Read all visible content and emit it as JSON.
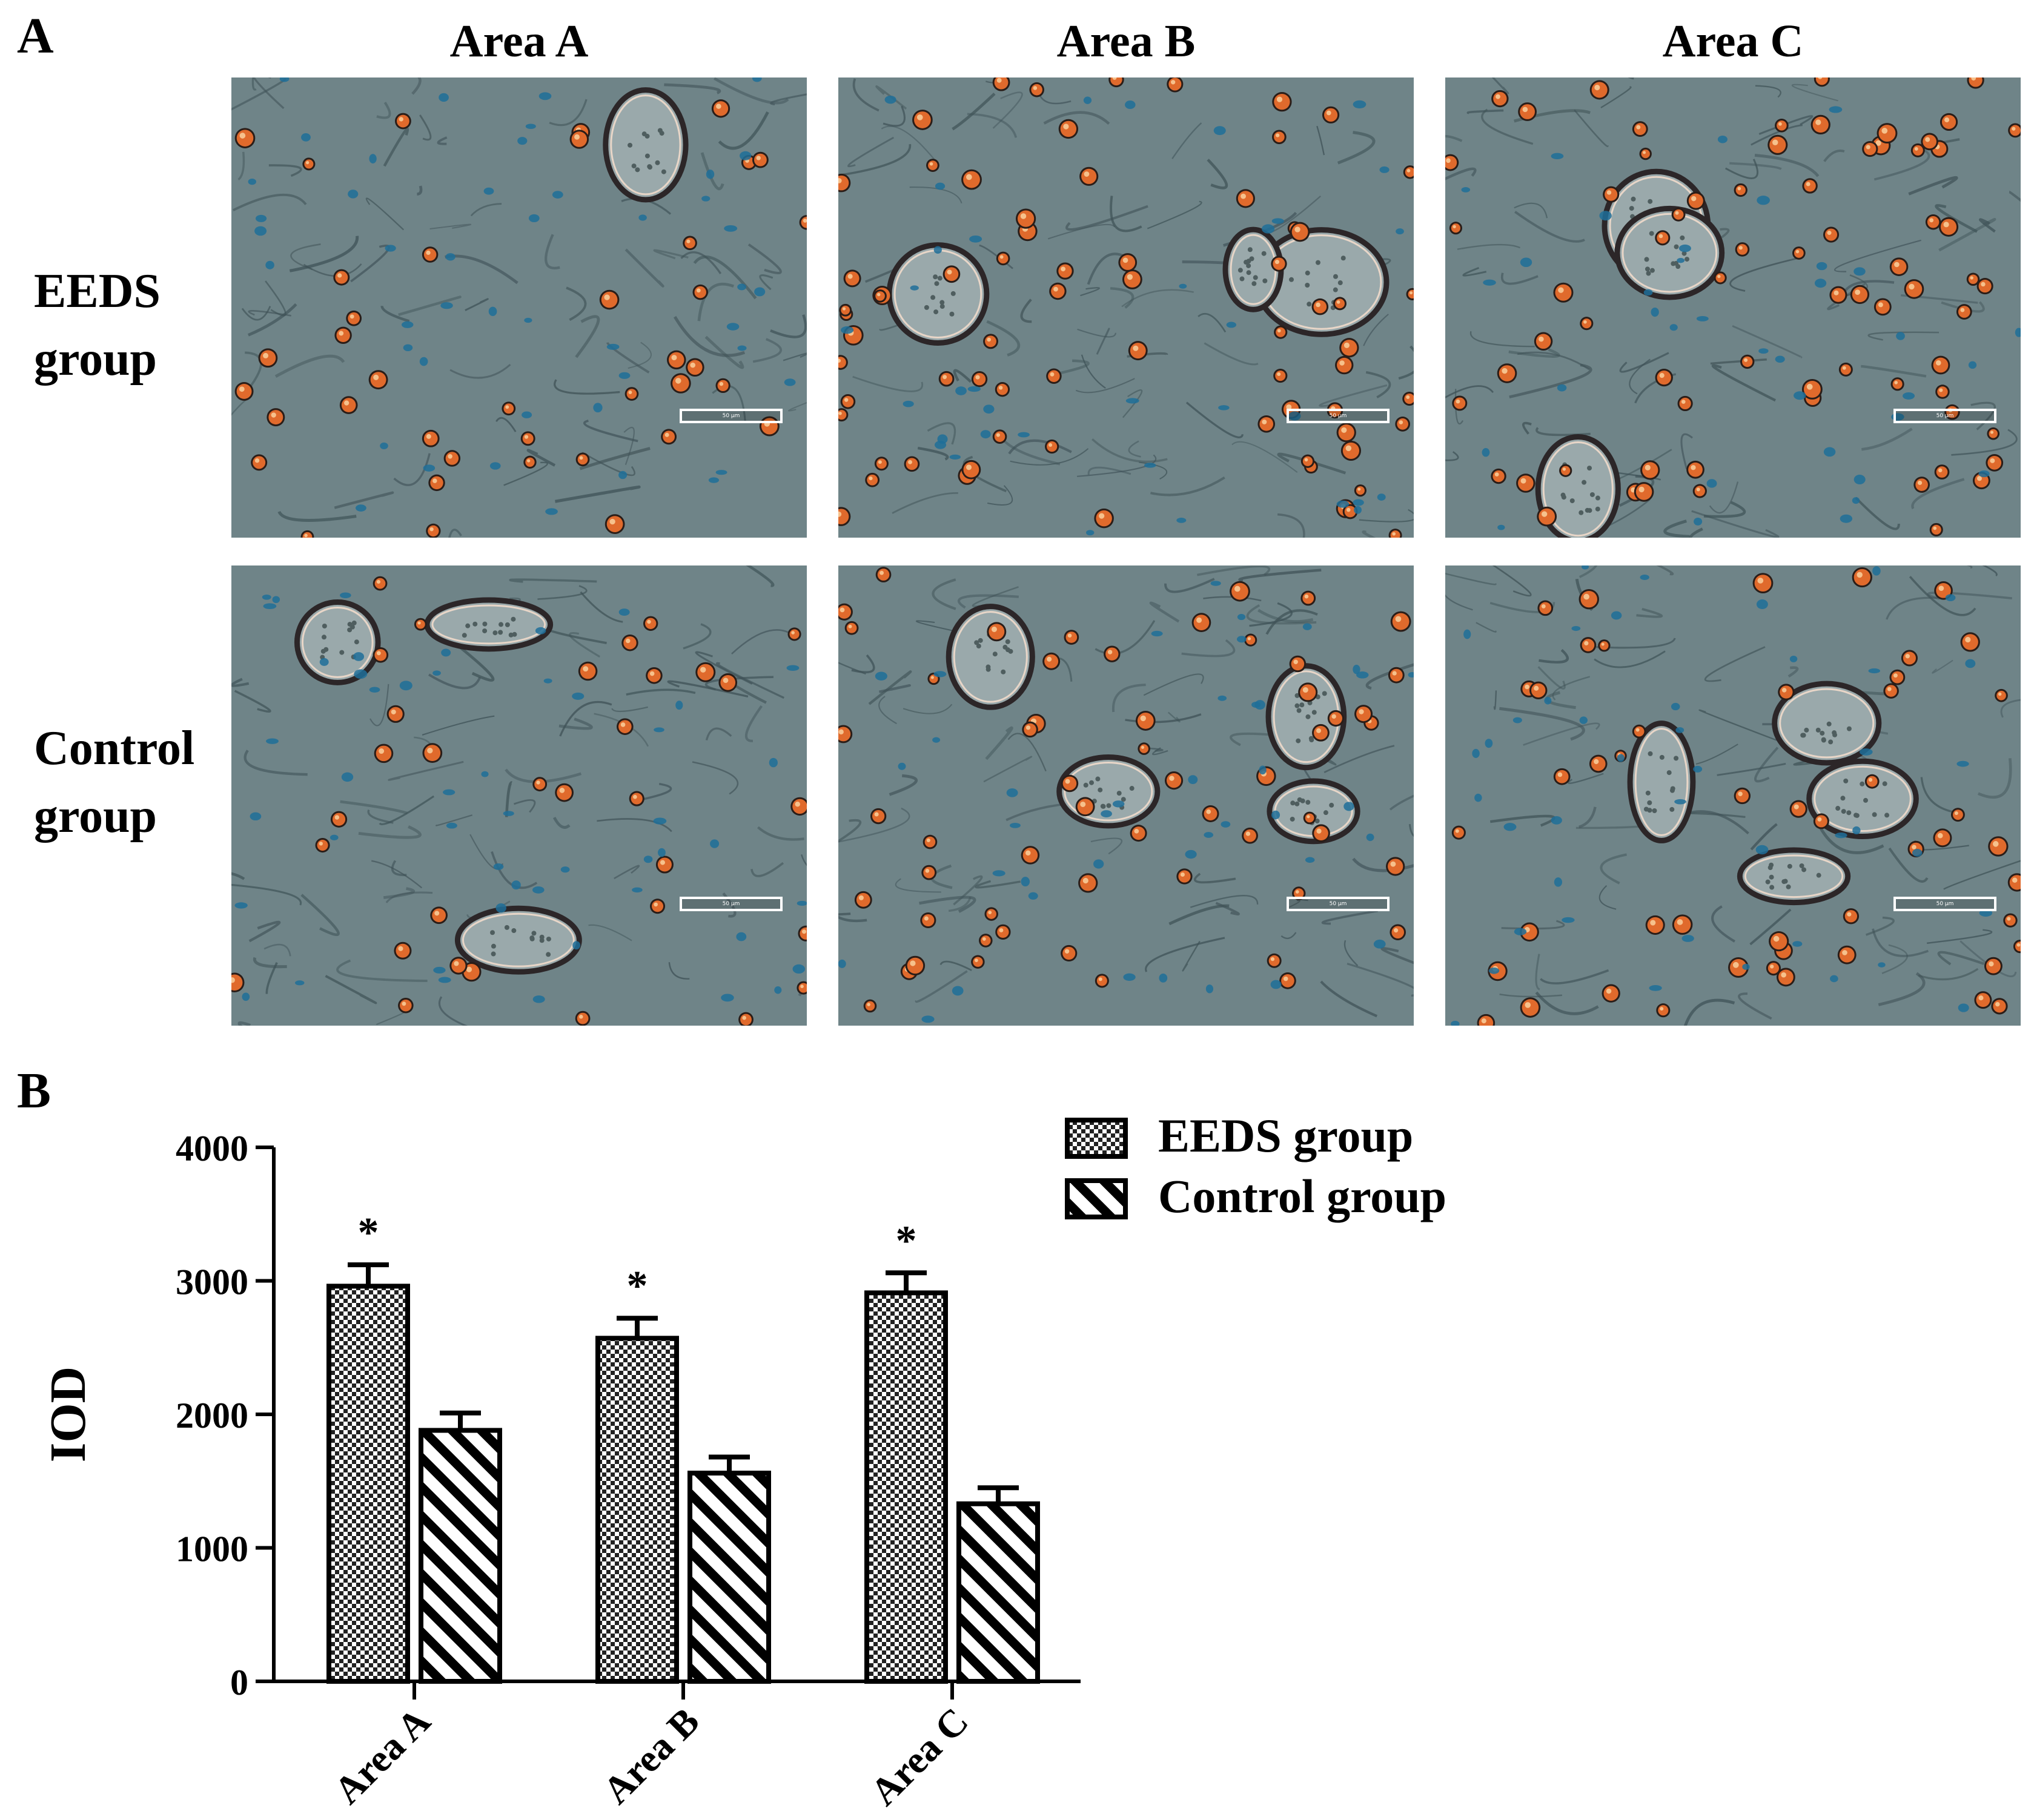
{
  "panels": {
    "a": "A",
    "b": "B"
  },
  "columns": [
    "Area A",
    "Area B",
    "Area C"
  ],
  "rows": [
    {
      "line1": "EEDS",
      "line2": "group"
    },
    {
      "line1": "Control",
      "line2": "group"
    }
  ],
  "scale_bar_label": "50 μm",
  "colors": {
    "tissue_background": "#6f8488",
    "fiber": "#3f5257",
    "stained_cell": "#e06a2c",
    "nucleus": "#1f6f99"
  },
  "chart_data": {
    "type": "bar",
    "categories": [
      "Area A",
      "Area B",
      "Area C"
    ],
    "series": [
      {
        "name": "EEDS group",
        "pattern": "checkerboard",
        "values": [
          2960,
          2570,
          2910
        ],
        "errors": [
          160,
          150,
          150
        ]
      },
      {
        "name": "Control group",
        "pattern": "diagonal-hatch",
        "values": [
          1880,
          1560,
          1330
        ],
        "errors": [
          130,
          120,
          120
        ]
      }
    ],
    "significance": [
      "*",
      "*",
      "*"
    ],
    "ylabel": "IOD",
    "ylim": [
      0,
      4000
    ],
    "yticks": [
      0,
      1000,
      2000,
      3000,
      4000
    ],
    "legend_position": "top-right",
    "grid": false
  }
}
